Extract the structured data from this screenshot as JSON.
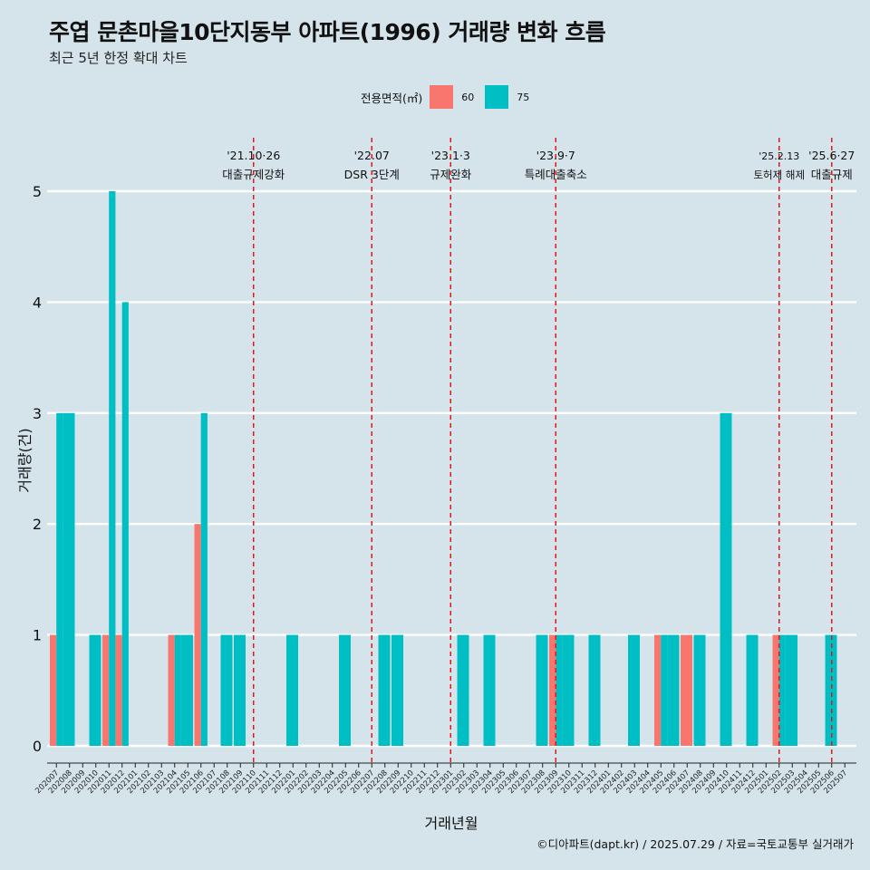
{
  "header": {
    "title": "주엽 문촌마을10단지동부 아파트(1996) 거래량 변화 흐름",
    "subtitle": "최근 5년 한정 확대 차트"
  },
  "legend": {
    "title": "전용면적(㎡)",
    "items": [
      {
        "label": "60",
        "color": "#f8766d"
      },
      {
        "label": "75",
        "color": "#00bfc4"
      }
    ]
  },
  "caption": "©디아파트(dapt.kr) / 2025.07.29 / 자료=국토교통부 실거래가",
  "chart_data": {
    "type": "bar",
    "xlabel": "거래년월",
    "ylabel": "거래량(건)",
    "ylim": [
      0,
      5
    ],
    "yticks": [
      0,
      1,
      2,
      3,
      4,
      5
    ],
    "grid": "horizontal",
    "legend_position": "top",
    "categories": [
      "202007",
      "202008",
      "202009",
      "202010",
      "202011",
      "202012",
      "202101",
      "202102",
      "202103",
      "202104",
      "202105",
      "202106",
      "202107",
      "202108",
      "202109",
      "202110",
      "202111",
      "202112",
      "202201",
      "202202",
      "202203",
      "202204",
      "202205",
      "202206",
      "202207",
      "202208",
      "202209",
      "202210",
      "202211",
      "202212",
      "202301",
      "202302",
      "202303",
      "202304",
      "202305",
      "202306",
      "202307",
      "202308",
      "202309",
      "202310",
      "202311",
      "202312",
      "202401",
      "202402",
      "202403",
      "202404",
      "202405",
      "202406",
      "202407",
      "202408",
      "202409",
      "202410",
      "202411",
      "202412",
      "202501",
      "202502",
      "202503",
      "202504",
      "202505",
      "202506",
      "202507"
    ],
    "series": [
      {
        "name": "60",
        "color": "#f8766d",
        "values": [
          1,
          0,
          0,
          0,
          1,
          1,
          0,
          0,
          0,
          1,
          0,
          2,
          0,
          0,
          0,
          0,
          0,
          0,
          0,
          0,
          0,
          0,
          0,
          0,
          0,
          0,
          0,
          0,
          0,
          0,
          0,
          0,
          0,
          0,
          0,
          0,
          0,
          0,
          1,
          0,
          0,
          0,
          0,
          0,
          0,
          0,
          1,
          0,
          1,
          0,
          0,
          0,
          0,
          0,
          0,
          1,
          0,
          0,
          0,
          0,
          0
        ]
      },
      {
        "name": "75",
        "color": "#00bfc4",
        "values": [
          3,
          3,
          0,
          1,
          5,
          4,
          0,
          0,
          0,
          1,
          1,
          3,
          0,
          1,
          1,
          0,
          0,
          0,
          1,
          0,
          0,
          0,
          1,
          0,
          0,
          1,
          1,
          0,
          0,
          0,
          0,
          1,
          0,
          1,
          0,
          0,
          0,
          1,
          1,
          1,
          0,
          1,
          0,
          0,
          1,
          0,
          1,
          1,
          0,
          1,
          0,
          3,
          0,
          1,
          0,
          1,
          1,
          0,
          0,
          1,
          0
        ]
      }
    ],
    "annotations": [
      {
        "x": "202110",
        "date": "'21.10·26",
        "label": "대출규제강화"
      },
      {
        "x": "202207",
        "date": "'22.07",
        "label": "DSR 3단계"
      },
      {
        "x": "202301",
        "date": "'23.1·3",
        "label": "규제완화"
      },
      {
        "x": "202309",
        "date": "'23.9·7",
        "label": "특례대출축소"
      },
      {
        "x": "202502",
        "date": "'25.2.13",
        "label": "토허제 해제"
      },
      {
        "x": "202506",
        "date": "'25.6·27",
        "label": "대출규제"
      }
    ]
  }
}
